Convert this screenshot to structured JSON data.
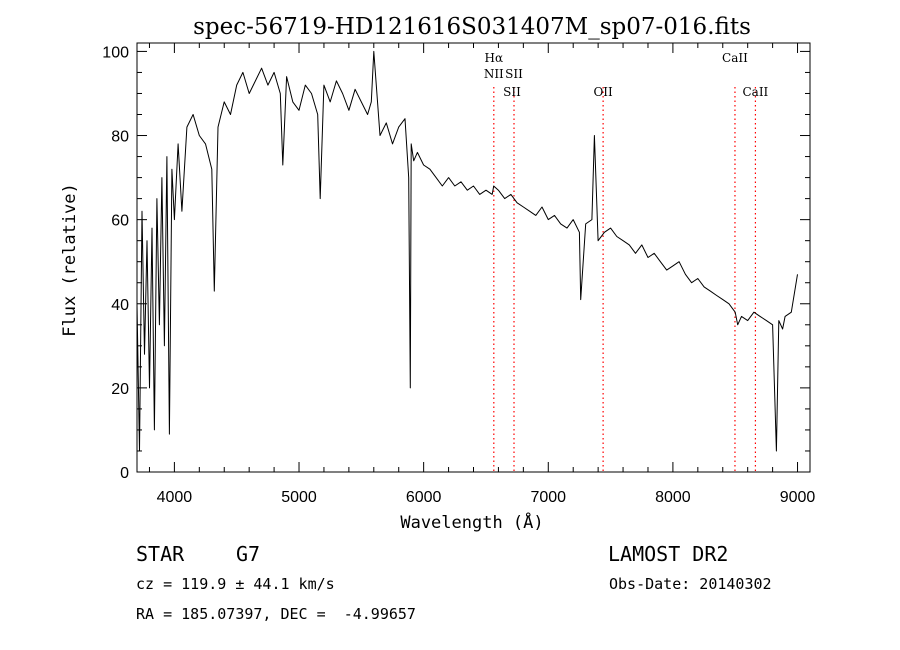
{
  "chart_data": {
    "type": "line",
    "title": "spec-56719-HD121616S031407M_sp07-016.fits",
    "xlabel": "Wavelength (Å)",
    "ylabel": "Flux (relative)",
    "xlim": [
      3700,
      9100
    ],
    "ylim": [
      0,
      102
    ],
    "xticks": [
      4000,
      5000,
      6000,
      7000,
      8000,
      9000
    ],
    "yticks": [
      0,
      20,
      40,
      60,
      80,
      100
    ],
    "grid": false,
    "line_color": "#000000",
    "marker_color": "#ff0000",
    "series": [
      {
        "x": [
          3700,
          3720,
          3740,
          3760,
          3780,
          3800,
          3820,
          3840,
          3860,
          3880,
          3900,
          3920,
          3940,
          3960,
          3980,
          4000,
          4030,
          4060,
          4100,
          4150,
          4200,
          4250,
          4300,
          4320,
          4350,
          4400,
          4450,
          4500,
          4550,
          4600,
          4650,
          4700,
          4750,
          4800,
          4850,
          4870,
          4900,
          4950,
          5000,
          5050,
          5100,
          5150,
          5170,
          5200,
          5250,
          5300,
          5350,
          5400,
          5450,
          5500,
          5550,
          5580,
          5600,
          5650,
          5700,
          5750,
          5800,
          5850,
          5880,
          5893,
          5900,
          5920,
          5950,
          6000,
          6050,
          6100,
          6150,
          6200,
          6250,
          6300,
          6350,
          6400,
          6450,
          6500,
          6550,
          6562,
          6600,
          6650,
          6700,
          6750,
          6800,
          6850,
          6900,
          6950,
          7000,
          7050,
          7100,
          7150,
          7200,
          7250,
          7260,
          7300,
          7350,
          7370,
          7400,
          7450,
          7500,
          7550,
          7600,
          7650,
          7700,
          7750,
          7800,
          7850,
          7900,
          7950,
          8000,
          8050,
          8100,
          8150,
          8200,
          8250,
          8300,
          8350,
          8400,
          8450,
          8500,
          8520,
          8550,
          8600,
          8650,
          8700,
          8750,
          8800,
          8830,
          8850,
          8880,
          8900,
          8950,
          9000
        ],
        "y": [
          40,
          5,
          62,
          28,
          55,
          20,
          58,
          10,
          65,
          35,
          70,
          30,
          75,
          9,
          72,
          60,
          78,
          62,
          82,
          85,
          80,
          78,
          72,
          43,
          82,
          88,
          85,
          92,
          95,
          90,
          93,
          96,
          92,
          95,
          90,
          73,
          94,
          88,
          86,
          92,
          90,
          85,
          65,
          92,
          88,
          93,
          90,
          86,
          91,
          88,
          85,
          88,
          100,
          80,
          83,
          78,
          82,
          84,
          70,
          20,
          78,
          74,
          76,
          73,
          72,
          70,
          68,
          70,
          68,
          69,
          67,
          68,
          66,
          67,
          66,
          68,
          67,
          65,
          66,
          64,
          63,
          62,
          61,
          63,
          60,
          61,
          59,
          58,
          60,
          57,
          41,
          59,
          60,
          80,
          55,
          57,
          58,
          56,
          55,
          54,
          52,
          54,
          51,
          52,
          50,
          48,
          49,
          50,
          47,
          45,
          46,
          44,
          43,
          42,
          41,
          40,
          38,
          35,
          37,
          36,
          38,
          37,
          36,
          35,
          5,
          36,
          34,
          37,
          38,
          47
        ]
      }
    ],
    "markers": [
      {
        "x": 6563,
        "labels": [
          "Hα",
          "NII"
        ]
      },
      {
        "x": 6725,
        "labels": [
          "SII",
          "SII"
        ]
      },
      {
        "x": 7440,
        "labels": [
          "OII"
        ]
      },
      {
        "x": 8498,
        "labels": [
          "CaII"
        ]
      },
      {
        "x": 8662,
        "labels": [
          "CaII"
        ]
      }
    ]
  },
  "info": {
    "object_class": "STAR",
    "subclass": "G7",
    "survey": "LAMOST DR2",
    "cz": "cz = 119.9 ± 44.1 km/s",
    "obs_date": "Obs-Date: 20140302",
    "coords": "RA = 185.07397, DEC =  -4.99657"
  }
}
